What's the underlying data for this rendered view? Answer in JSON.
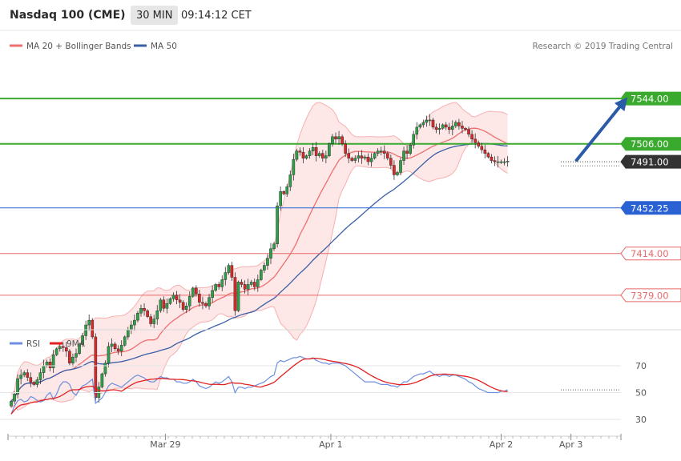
{
  "header": {
    "instrument": "Nasdaq 100 (CME)",
    "timeframe": "30 MIN",
    "time": "09:14:12 CET"
  },
  "copyright": "Research © 2019 Trading Central",
  "colors": {
    "bollinger": "#ef6f6f",
    "bollinger_fill": "#fde3e3",
    "ma50": "#3a5ea8",
    "up_candle": "#2e9e48",
    "down_candle": "#d42a2a",
    "resistance": "#3aaa2e",
    "pivot": "#2a62d4",
    "support": "#e86a6a",
    "last_price": "#333333",
    "arrow": "#2b5aa6",
    "rsi": "#6c8fe0",
    "rsi_ma": "#e22020"
  },
  "chart_data": [
    {
      "type": "candlestick",
      "legend": [
        {
          "name": "MA 20 + Bollinger Bands",
          "color": "#ef6f6f"
        },
        {
          "name": "MA 50",
          "color": "#3a5ea8"
        }
      ],
      "ylim": [
        7326.5,
        7575
      ],
      "x_tick_labels": [
        "Mar 29",
        "Apr 1",
        "Apr 2",
        "Apr 3"
      ],
      "x_tick_index": [
        47.5,
        98.5,
        151,
        172.5
      ],
      "price_levels": [
        {
          "value": 7544.0,
          "label": "7544.00",
          "kind": "resistance"
        },
        {
          "value": 7506.0,
          "label": "7506.00",
          "kind": "resistance"
        },
        {
          "value": 7491.0,
          "label": "7491.00",
          "kind": "last"
        },
        {
          "value": 7452.25,
          "label": "7452.25",
          "kind": "pivot"
        },
        {
          "value": 7414.0,
          "label": "7414.00",
          "kind": "support"
        },
        {
          "value": 7379.0,
          "label": "7379.00",
          "kind": "support"
        }
      ],
      "forecast_arrow": {
        "from_index": 174,
        "from_price": 7491.5,
        "to_index": 189,
        "to_price": 7542
      },
      "closes": [
        7290,
        7296,
        7309,
        7312,
        7314,
        7310,
        7306,
        7304,
        7308,
        7314,
        7320,
        7323,
        7318,
        7329,
        7334,
        7336,
        7335,
        7332,
        7322,
        7327,
        7330,
        7338,
        7345,
        7354,
        7358,
        7344,
        7293,
        7302,
        7313,
        7322,
        7336,
        7338,
        7334,
        7332,
        7337,
        7344,
        7350,
        7354,
        7358,
        7364,
        7368,
        7366,
        7361,
        7355,
        7359,
        7366,
        7375,
        7368,
        7372,
        7376,
        7379,
        7375,
        7373,
        7367,
        7370,
        7378,
        7385,
        7380,
        7373,
        7372,
        7370,
        7377,
        7383,
        7388,
        7386,
        7392,
        7398,
        7404,
        7394,
        7366,
        7390,
        7388,
        7384,
        7388,
        7390,
        7386,
        7392,
        7400,
        7404,
        7410,
        7418,
        7422,
        7454,
        7466,
        7464,
        7470,
        7480,
        7493,
        7500,
        7499,
        7494,
        7496,
        7500,
        7503,
        7496,
        7498,
        7494,
        7496,
        7506,
        7512,
        7510,
        7512,
        7506,
        7498,
        7494,
        7492,
        7494,
        7496,
        7494,
        7495,
        7491,
        7494,
        7498,
        7500,
        7500,
        7498,
        7494,
        7488,
        7480,
        7482,
        7492,
        7500,
        7498,
        7505,
        7514,
        7520,
        7522,
        7524,
        7526,
        7526,
        7520,
        7518,
        7519,
        7522,
        7520,
        7518,
        7521,
        7524,
        7521,
        7519,
        7518,
        7514,
        7510,
        7507,
        7504,
        7501,
        7498,
        7495,
        7492,
        7491,
        7491,
        7491,
        7491,
        7491.5
      ]
    },
    {
      "type": "line",
      "legend": [
        {
          "name": "RSI",
          "color": "#6c8fe0"
        },
        {
          "name": "9MA",
          "color": "#e22020"
        }
      ],
      "ylim": [
        20,
        85
      ],
      "y_tick_labels": [
        "70",
        "50",
        "30"
      ],
      "y_ticks": [
        70,
        50,
        30
      ],
      "dotted_reference": 52,
      "rsi_values": [
        34,
        40,
        44,
        45,
        43,
        44,
        47,
        46,
        44,
        43,
        44,
        48,
        50,
        45,
        49,
        55,
        58,
        58,
        56,
        50,
        48,
        52,
        55,
        56,
        58,
        60,
        42,
        44,
        46,
        50,
        55,
        57,
        56,
        55,
        54,
        56,
        58,
        60,
        62,
        63,
        62,
        61,
        59,
        58,
        58,
        60,
        62,
        61,
        61,
        60,
        60,
        58,
        58,
        57,
        57,
        58,
        60,
        58,
        55,
        54,
        53,
        54,
        56,
        58,
        57,
        58,
        60,
        62,
        58,
        50,
        54,
        54,
        53,
        54,
        54,
        55,
        56,
        57,
        58,
        60,
        62,
        63,
        72,
        74,
        73,
        74,
        75,
        76,
        76,
        77,
        76,
        75,
        75,
        76,
        74,
        73,
        72,
        72,
        71,
        72,
        72,
        72,
        71,
        70,
        68,
        66,
        64,
        62,
        60,
        58,
        58,
        58,
        58,
        57,
        56,
        56,
        56,
        55,
        55,
        54,
        56,
        58,
        58,
        60,
        62,
        63,
        64,
        64,
        65,
        66,
        64,
        63,
        62,
        63,
        63,
        62,
        63,
        63,
        62,
        61,
        60,
        58,
        57,
        55,
        53,
        52,
        51,
        50,
        50,
        50,
        50,
        51,
        51,
        52
      ]
    }
  ]
}
